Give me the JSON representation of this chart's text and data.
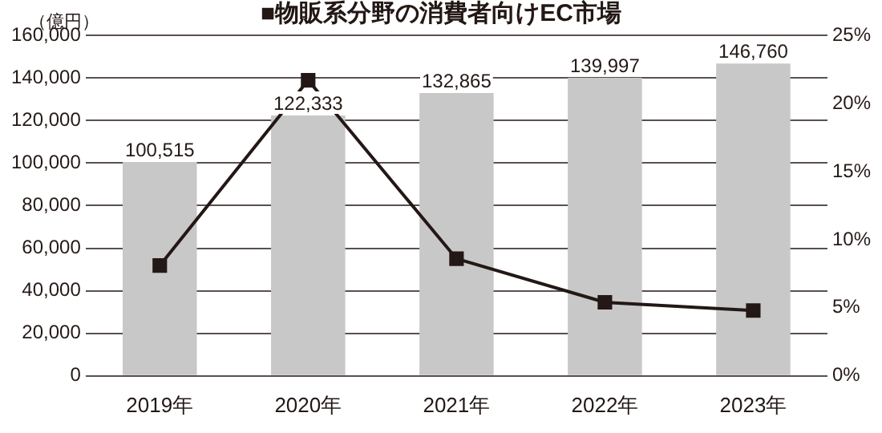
{
  "chart_data": {
    "type": "bar",
    "title": "■物販系分野の消費者向けEC市場",
    "ylabel": "（億円）",
    "categories": [
      "2019年",
      "2020年",
      "2021年",
      "2022年",
      "2023年"
    ],
    "series": [
      {
        "color": "#c8c8c8",
        "values": [
          100515,
          122333,
          132865,
          139997,
          146760
        ],
        "value_labels": [
          "100,515",
          "122,333",
          "132,865",
          "139,997",
          "146,760"
        ]
      },
      {
        "type": "line",
        "axis": "y2",
        "color": "#231815",
        "values": [
          8.1,
          21.7,
          8.6,
          5.4,
          4.8
        ],
        "marker": "square",
        "line_style": "solid"
      }
    ],
    "ylim": [
      0,
      160000
    ],
    "yticks": [
      {
        "value": 0,
        "label": "0"
      },
      {
        "value": 20000,
        "label": "20,000"
      },
      {
        "value": 40000,
        "label": "40,000"
      },
      {
        "value": 60000,
        "label": "60,000"
      },
      {
        "value": 80000,
        "label": "80,000"
      },
      {
        "value": 100000,
        "label": "100,000"
      },
      {
        "value": 120000,
        "label": "120,000"
      },
      {
        "value": 140000,
        "label": "140,000"
      },
      {
        "value": 160000,
        "label": "160,000"
      }
    ],
    "y2lim": [
      0,
      25
    ],
    "y2ticks": [
      {
        "value": 0,
        "label": "0%"
      },
      {
        "value": 5,
        "label": "5%"
      },
      {
        "value": 10,
        "label": "10%"
      },
      {
        "value": 15,
        "label": "15%"
      },
      {
        "value": 20,
        "label": "20%"
      },
      {
        "value": 25,
        "label": "25%"
      }
    ],
    "grid": "y",
    "legend": false
  }
}
